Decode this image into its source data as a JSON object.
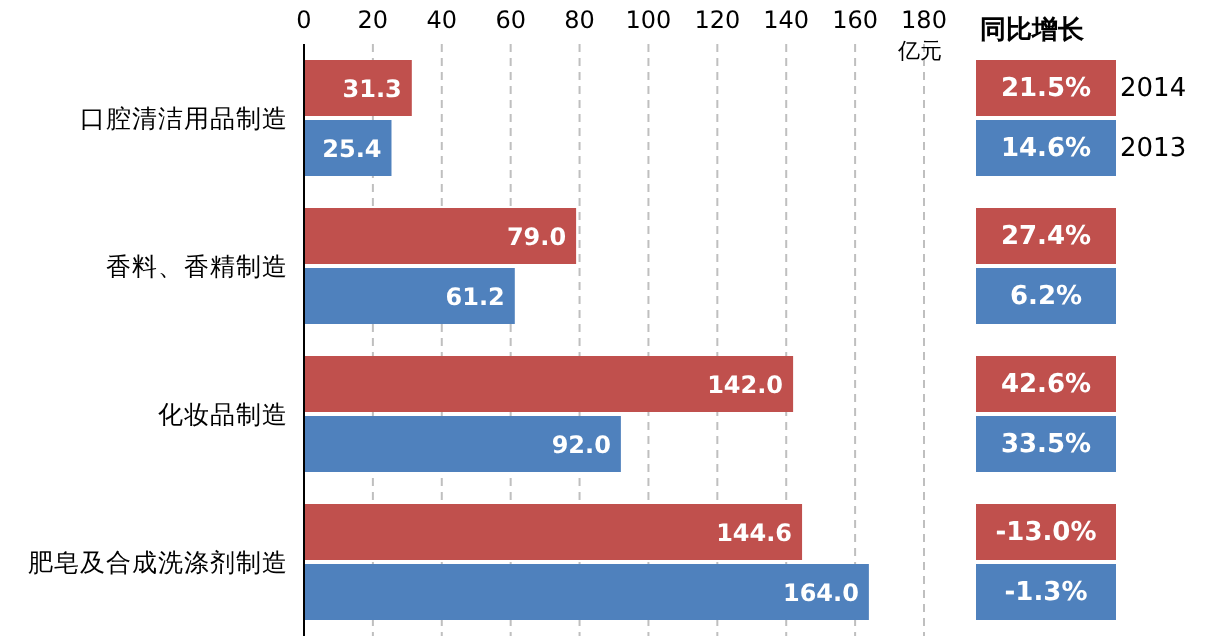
{
  "chart_data": [
    {
      "type": "bar",
      "orientation": "horizontal",
      "xlabel": "亿元",
      "categories": [
        "口腔清洁用品制造",
        "香料、香精制造",
        "化妆品制造",
        "肥皂及合成洗涤剂制造"
      ],
      "series": [
        {
          "name": "2014",
          "color": "#c0504d",
          "values": [
            31.3,
            79.0,
            142.0,
            144.6
          ],
          "value_labels": [
            "31.3",
            "79.0",
            "142.0",
            "144.6"
          ]
        },
        {
          "name": "2013",
          "color": "#4f81bd",
          "values": [
            25.4,
            61.2,
            92.0,
            164.0
          ],
          "value_labels": [
            "25.4",
            "61.2",
            "92.0",
            "164.0"
          ]
        }
      ],
      "xlim": [
        0,
        180
      ],
      "xticks": [
        0,
        20,
        40,
        60,
        80,
        100,
        120,
        140,
        160,
        180
      ],
      "grid": "x",
      "legend": "right"
    },
    {
      "type": "other",
      "title": "同比增长",
      "annotations": [
        "21.5%",
        "14.6%",
        "27.4%",
        "6.2%",
        "42.6%",
        "33.5%",
        "-13.0%",
        "-1.3%"
      ],
      "colors": [
        "#c0504d",
        "#4f81bd",
        "#c0504d",
        "#4f81bd",
        "#c0504d",
        "#4f81bd",
        "#c0504d",
        "#4f81bd"
      ]
    }
  ]
}
